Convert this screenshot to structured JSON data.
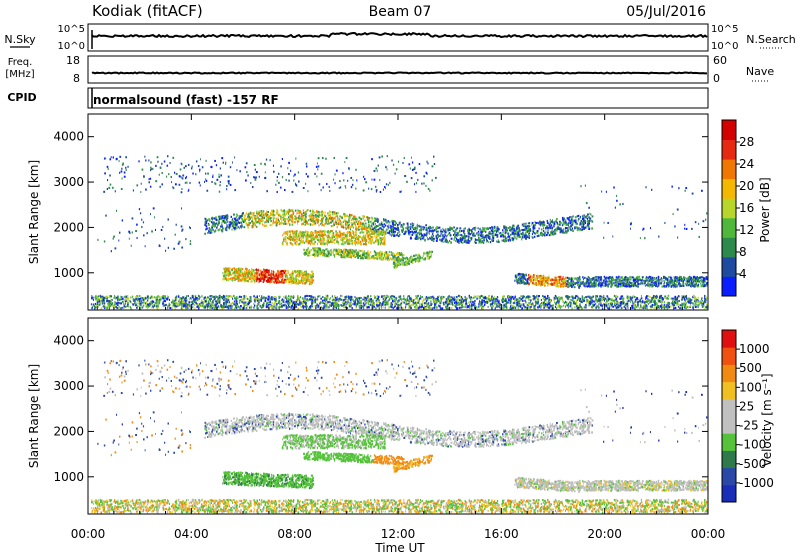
{
  "header": {
    "station": "Kodiak (fitACF)",
    "beam": "Beam 07",
    "date": "05/Jul/2016"
  },
  "summary": {
    "nsky_label": "N.Sky",
    "nsearch_label": "N.Search",
    "nsky_ticks": [
      "10^5",
      "10^0"
    ],
    "nsearch_ticks": [
      "10^5",
      "10^0"
    ],
    "freq_label_1": "Freq.",
    "freq_label_2": "[MHz]",
    "freq_ticks": [
      "18",
      "8"
    ],
    "nave_label": "Nave",
    "nave_ticks": [
      "60",
      "0"
    ],
    "cpid_label": "CPID",
    "cpid_text": "normalsound (fast) -157 RF"
  },
  "colors": {
    "power_scale": [
      "#0a1eff",
      "#1e4ba0",
      "#2d8a4a",
      "#4fb83a",
      "#b8d62a",
      "#f5b800",
      "#f07800",
      "#e62a12",
      "#d40000"
    ],
    "velocity_scale": [
      "#1a2db8",
      "#2a48a8",
      "#2f7a4a",
      "#55c23a",
      "#c0c0c0",
      "#c0c0c0",
      "#f0c020",
      "#f08a10",
      "#f05010",
      "#e01010"
    ],
    "ground_scatter": "#bdbdbd"
  },
  "chart_data": [
    {
      "type": "heatmap",
      "panel": "power",
      "ylabel": "Slant Range [km]",
      "ylim": [
        180,
        4500
      ],
      "yticks": [
        "4000",
        "3000",
        "2000",
        "1000"
      ],
      "colorbar_label": "Power [dB]",
      "colorbar_ticks": [
        "28",
        "24",
        "20",
        "16",
        "12",
        "8",
        "4"
      ],
      "clim": [
        0,
        32
      ],
      "xlim_hours": [
        0,
        24
      ]
    },
    {
      "type": "heatmap",
      "panel": "velocity",
      "ylabel": "Slant Range [km]",
      "ylim": [
        180,
        4500
      ],
      "yticks": [
        "4000",
        "3000",
        "2000",
        "1000"
      ],
      "colorbar_label": "Velocity [m s⁻¹]",
      "colorbar_ticks": [
        "1000",
        "500",
        "100",
        "25",
        "-25",
        "-100",
        "-500",
        "-1000"
      ],
      "xlim_hours": [
        0,
        24
      ]
    }
  ],
  "xaxis": {
    "label": "Time UT",
    "ticks": [
      "00:00",
      "04:00",
      "08:00",
      "12:00",
      "16:00",
      "20:00",
      "00:00"
    ]
  }
}
